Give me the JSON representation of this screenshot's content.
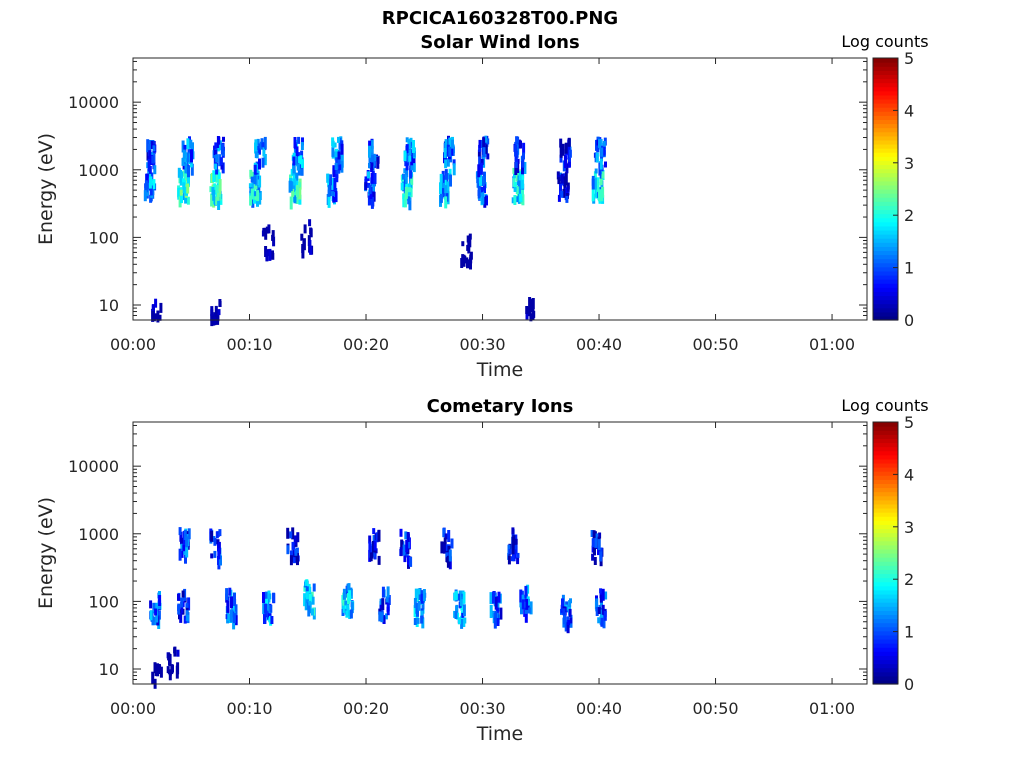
{
  "figure": {
    "title": "RPCICA160328T00.PNG"
  },
  "colormap": [
    "#00007f",
    "#0000ff",
    "#007fff",
    "#00ffff",
    "#7fff7f",
    "#ffff00",
    "#ff7f00",
    "#ff0000",
    "#7f0000"
  ],
  "chart_data": [
    {
      "type": "heatmap",
      "title": "Solar Wind Ions",
      "xlabel": "Time",
      "ylabel": "Energy (eV)",
      "colorbar_label": "Log counts",
      "x_ticks": [
        "00:00",
        "00:10",
        "00:20",
        "00:30",
        "00:40",
        "00:50",
        "01:00"
      ],
      "y_ticks": [
        "10",
        "100",
        "1000",
        "10000"
      ],
      "colorbar_ticks": [
        "0",
        "1",
        "2",
        "3",
        "4",
        "5"
      ],
      "xlim_minutes": [
        0,
        63
      ],
      "ylim_ev": [
        6,
        45000
      ],
      "y_scale": "log",
      "clim": [
        0,
        5
      ],
      "clusters": [
        {
          "t": 1.3,
          "e": 650,
          "v": 1.9
        },
        {
          "t": 1.5,
          "e": 1900,
          "v": 1.5
        },
        {
          "t": 4.2,
          "e": 650,
          "v": 2.6
        },
        {
          "t": 4.6,
          "e": 1900,
          "v": 1.8
        },
        {
          "t": 7.0,
          "e": 650,
          "v": 2.7
        },
        {
          "t": 7.2,
          "e": 1900,
          "v": 1.7
        },
        {
          "t": 10.4,
          "e": 650,
          "v": 2.3
        },
        {
          "t": 10.8,
          "e": 1900,
          "v": 1.9
        },
        {
          "t": 13.8,
          "e": 650,
          "v": 2.5
        },
        {
          "t": 14.0,
          "e": 1900,
          "v": 1.9
        },
        {
          "t": 17.0,
          "e": 650,
          "v": 1.8
        },
        {
          "t": 17.4,
          "e": 1900,
          "v": 1.8
        },
        {
          "t": 20.2,
          "e": 650,
          "v": 1.7
        },
        {
          "t": 20.5,
          "e": 1900,
          "v": 1.6
        },
        {
          "t": 23.4,
          "e": 650,
          "v": 2.3
        },
        {
          "t": 23.6,
          "e": 1900,
          "v": 1.8
        },
        {
          "t": 26.7,
          "e": 650,
          "v": 2.1
        },
        {
          "t": 27.0,
          "e": 1900,
          "v": 1.6
        },
        {
          "t": 29.8,
          "e": 650,
          "v": 1.7
        },
        {
          "t": 30.0,
          "e": 1900,
          "v": 1.5
        },
        {
          "t": 32.9,
          "e": 650,
          "v": 2.4
        },
        {
          "t": 33.1,
          "e": 1900,
          "v": 1.6
        },
        {
          "t": 36.8,
          "e": 650,
          "v": 1.4
        },
        {
          "t": 37.0,
          "e": 1900,
          "v": 1.3
        },
        {
          "t": 39.8,
          "e": 650,
          "v": 2.3
        },
        {
          "t": 40.0,
          "e": 1900,
          "v": 1.8
        },
        {
          "t": 2.0,
          "e": 8,
          "v": 0.5
        },
        {
          "t": 7.0,
          "e": 8,
          "v": 0.5
        },
        {
          "t": 34.0,
          "e": 8,
          "v": 0.5
        },
        {
          "t": 14.8,
          "e": 120,
          "v": 0.6
        },
        {
          "t": 11.5,
          "e": 95,
          "v": 0.5
        },
        {
          "t": 28.5,
          "e": 70,
          "v": 0.5
        }
      ]
    },
    {
      "type": "heatmap",
      "title": "Cometary Ions",
      "xlabel": "Time",
      "ylabel": "Energy (eV)",
      "colorbar_label": "Log counts",
      "x_ticks": [
        "00:00",
        "00:10",
        "00:20",
        "00:30",
        "00:40",
        "00:50",
        "01:00"
      ],
      "y_ticks": [
        "10",
        "100",
        "1000",
        "10000"
      ],
      "colorbar_ticks": [
        "0",
        "1",
        "2",
        "3",
        "4",
        "5"
      ],
      "xlim_minutes": [
        0,
        63
      ],
      "ylim_ev": [
        6,
        45000
      ],
      "y_scale": "log",
      "clim": [
        0,
        5
      ],
      "clusters": [
        {
          "t": 1.8,
          "e": 85,
          "v": 1.7
        },
        {
          "t": 4.2,
          "e": 95,
          "v": 1.4
        },
        {
          "t": 8.3,
          "e": 95,
          "v": 1.8
        },
        {
          "t": 11.5,
          "e": 90,
          "v": 1.9
        },
        {
          "t": 15.0,
          "e": 130,
          "v": 2.3
        },
        {
          "t": 18.3,
          "e": 120,
          "v": 2.2
        },
        {
          "t": 21.5,
          "e": 100,
          "v": 1.6
        },
        {
          "t": 24.5,
          "e": 95,
          "v": 2.0
        },
        {
          "t": 27.9,
          "e": 90,
          "v": 1.9
        },
        {
          "t": 31.0,
          "e": 95,
          "v": 1.6
        },
        {
          "t": 33.6,
          "e": 120,
          "v": 1.8
        },
        {
          "t": 37.1,
          "e": 80,
          "v": 1.6
        },
        {
          "t": 40.0,
          "e": 95,
          "v": 1.5
        },
        {
          "t": 4.3,
          "e": 750,
          "v": 1.6
        },
        {
          "t": 7.0,
          "e": 750,
          "v": 1.4
        },
        {
          "t": 13.6,
          "e": 750,
          "v": 1.2
        },
        {
          "t": 20.6,
          "e": 750,
          "v": 1.2
        },
        {
          "t": 23.3,
          "e": 750,
          "v": 1.3
        },
        {
          "t": 26.8,
          "e": 750,
          "v": 1.2
        },
        {
          "t": 32.5,
          "e": 750,
          "v": 1.2
        },
        {
          "t": 39.7,
          "e": 750,
          "v": 1.2
        },
        {
          "t": 2.0,
          "e": 8,
          "v": 0.5
        },
        {
          "t": 3.3,
          "e": 14,
          "v": 0.5
        }
      ]
    }
  ]
}
